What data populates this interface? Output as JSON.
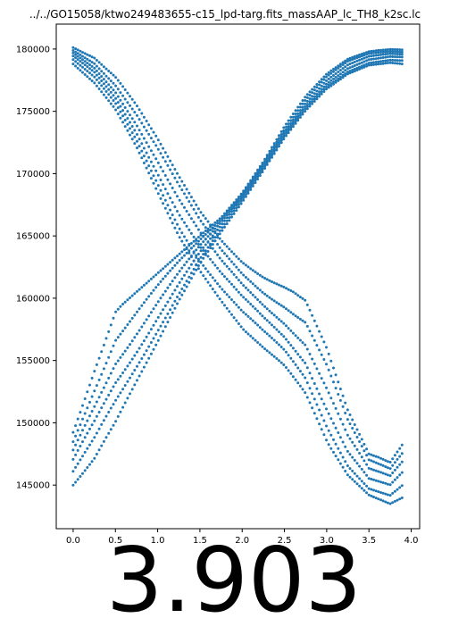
{
  "chart_data": {
    "type": "scatter",
    "title": "../../GO15058/ktwo249483655-c15_lpd-targ.fits_massAAP_lc_TH8_k2sc.lc",
    "xlabel": "",
    "ylabel": "",
    "xlim": [
      -0.2,
      4.1
    ],
    "ylim": [
      141500,
      182000
    ],
    "xticks": [
      "0.0",
      "0.5",
      "1.0",
      "1.5",
      "2.0",
      "2.5",
      "3.0",
      "3.5",
      "4.0"
    ],
    "yticks": [
      "145000",
      "150000",
      "155000",
      "160000",
      "165000",
      "170000",
      "175000",
      "180000"
    ],
    "grid": false,
    "marker_color": "#1f77b4",
    "series_description": "phase-folded light curve: two crossing bands of points",
    "descending_band": {
      "x": [
        0.0,
        0.25,
        0.5,
        0.75,
        1.0,
        1.25,
        1.5,
        1.75,
        2.0,
        2.25,
        2.5,
        2.75,
        3.0,
        3.25,
        3.5,
        3.75,
        3.9
      ],
      "y_upper": [
        180200,
        179400,
        177800,
        175500,
        172800,
        169800,
        167000,
        164800,
        163200,
        162000,
        161000,
        159800,
        156000,
        151000,
        147500,
        146900,
        148500
      ],
      "y_lower": [
        178800,
        177200,
        175000,
        172000,
        168500,
        165000,
        162200,
        159800,
        157600,
        155800,
        154200,
        152000,
        148500,
        145800,
        144200,
        143500,
        144000
      ]
    },
    "ascending_band": {
      "x": [
        0.0,
        0.25,
        0.5,
        0.75,
        1.0,
        1.25,
        1.5,
        1.75,
        2.0,
        2.25,
        2.5,
        2.75,
        3.0,
        3.25,
        3.5,
        3.75,
        3.9
      ],
      "y_upper": [
        149500,
        154500,
        159000,
        160500,
        162000,
        163500,
        165000,
        166500,
        168500,
        171000,
        173800,
        176200,
        178000,
        179200,
        179800,
        180000,
        180000
      ],
      "y_lower": [
        145000,
        146800,
        149500,
        153000,
        156500,
        159800,
        162800,
        165300,
        167700,
        170200,
        172800,
        175000,
        176800,
        178000,
        178700,
        178900,
        178800
      ]
    }
  },
  "footer_value": "3.903"
}
